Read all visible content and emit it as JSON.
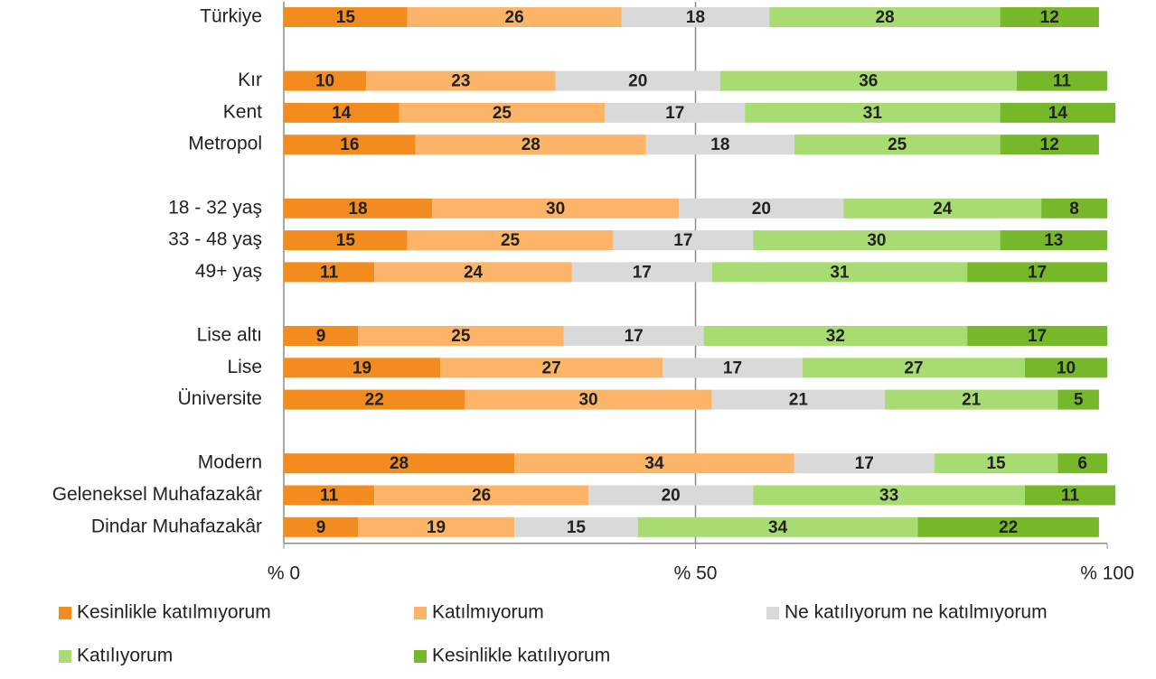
{
  "chart_data": {
    "type": "stacked_bar_horizontal",
    "categories": [
      "Türkiye",
      null,
      "Kır",
      "Kent",
      "Metropol",
      null,
      "18 - 32 yaş",
      "33 - 48 yaş",
      "49+ yaş",
      null,
      "Lise altı",
      "Lise",
      "Üniversite",
      null,
      "Modern",
      "Geleneksel Muhafazakâr",
      "Dindar Muhafazakâr"
    ],
    "series": [
      {
        "name": "Kesinlikle katılmıyorum",
        "color": "#f28c1e",
        "values": [
          15,
          null,
          10,
          14,
          16,
          null,
          18,
          15,
          11,
          null,
          9,
          19,
          22,
          null,
          28,
          11,
          9
        ]
      },
      {
        "name": "Katılmıyorum",
        "color": "#fbb468",
        "values": [
          26,
          null,
          23,
          25,
          28,
          null,
          30,
          25,
          24,
          null,
          25,
          27,
          30,
          null,
          34,
          26,
          19
        ]
      },
      {
        "name": "Ne katılıyorum ne katılmıyorum",
        "color": "#d9d9d9",
        "values": [
          18,
          null,
          20,
          17,
          18,
          null,
          20,
          17,
          17,
          null,
          17,
          17,
          21,
          null,
          17,
          20,
          15
        ]
      },
      {
        "name": "Katılıyorum",
        "color": "#a8db72",
        "values": [
          28,
          null,
          36,
          31,
          25,
          null,
          24,
          30,
          31,
          null,
          32,
          27,
          21,
          null,
          15,
          33,
          34
        ]
      },
      {
        "name": "Kesinlikle katılıyorum",
        "color": "#76b82a",
        "values": [
          12,
          null,
          11,
          14,
          12,
          null,
          8,
          13,
          17,
          null,
          17,
          10,
          5,
          null,
          6,
          11,
          22
        ]
      }
    ],
    "xlim": [
      0,
      100
    ],
    "xticks": [
      {
        "value": 0,
        "label": "% 0"
      },
      {
        "value": 50,
        "label": "% 50"
      },
      {
        "value": 100,
        "label": "% 100"
      }
    ],
    "grid": true,
    "legend": "bottom"
  }
}
